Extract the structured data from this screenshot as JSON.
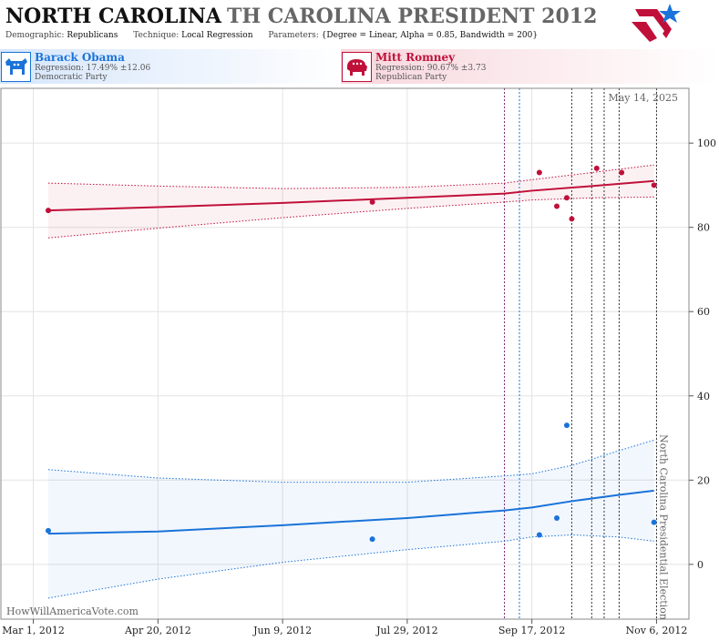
{
  "header": {
    "title_main": "NORTH CAROLINA",
    "title_sub": "TH CAROLINA PRESIDENT 2012",
    "demographic_label": "Demographic:",
    "demographic_value": "Republicans",
    "technique_label": "Technique:",
    "technique_value": "Local Regression",
    "parameters_label": "Parameters:",
    "parameters_value": "{Degree = Linear, Alpha = 0.85, Bandwidth = 200}"
  },
  "candidates": {
    "dem": {
      "name": "Barack Obama",
      "regression": "Regression: 17.49% ±12.06",
      "party": "Democratic Party",
      "color": "#1a73d9"
    },
    "rep": {
      "name": "Mitt Romney",
      "regression": "Regression: 90.67% ±3.73",
      "party": "Republican Party",
      "color": "#c0103a"
    }
  },
  "chart_data": {
    "type": "scatter",
    "date_label": "May 14, 2025",
    "watermark": "HowWillAmericaVote.com",
    "election_label": "North Carolina Presidential Election",
    "x_ticks": [
      "2012-03-01",
      "2012-04-20",
      "2012-06-09",
      "2012-07-29",
      "2012-09-17",
      "2012-11-06"
    ],
    "x_tick_labels": [
      "Mar 1, 2012",
      "Apr 20, 2012",
      "Jun 9, 2012",
      "Jul 29, 2012",
      "Sep 17, 2012",
      "Nov 6, 2012"
    ],
    "xlim": [
      "2012-02-17",
      "2012-11-19"
    ],
    "ylim": [
      -13,
      113
    ],
    "y_ticks": [
      0,
      20,
      40,
      60,
      80,
      100
    ],
    "grid": true,
    "event_lines": [
      {
        "date": "2012-09-06",
        "color": "#7a1f6e"
      },
      {
        "date": "2012-09-12",
        "color": "#1a73d9"
      },
      {
        "date": "2012-10-03",
        "color": "#333333"
      },
      {
        "date": "2012-10-11",
        "color": "#333333"
      },
      {
        "date": "2012-10-16",
        "color": "#333333"
      },
      {
        "date": "2012-10-22",
        "color": "#333333"
      },
      {
        "date": "2012-11-06",
        "color": "#333333"
      }
    ],
    "series": [
      {
        "name": "Mitt Romney",
        "color": "#c0103a",
        "points": [
          {
            "x": "2012-03-07",
            "y": 84
          },
          {
            "x": "2012-07-15",
            "y": 86
          },
          {
            "x": "2012-09-20",
            "y": 93
          },
          {
            "x": "2012-09-27",
            "y": 85
          },
          {
            "x": "2012-10-01",
            "y": 87
          },
          {
            "x": "2012-10-03",
            "y": 82
          },
          {
            "x": "2012-10-13",
            "y": 94
          },
          {
            "x": "2012-10-23",
            "y": 93
          },
          {
            "x": "2012-11-05",
            "y": 90
          }
        ],
        "trend": [
          {
            "x": "2012-03-07",
            "y": 84,
            "lo": 77.5,
            "hi": 90.5
          },
          {
            "x": "2012-04-20",
            "y": 84.8,
            "lo": 79.8,
            "hi": 89.8
          },
          {
            "x": "2012-06-09",
            "y": 85.8,
            "lo": 82.3,
            "hi": 89.2
          },
          {
            "x": "2012-07-29",
            "y": 87,
            "lo": 84.5,
            "hi": 89.5
          },
          {
            "x": "2012-09-06",
            "y": 88,
            "lo": 86,
            "hi": 90.5
          },
          {
            "x": "2012-09-17",
            "y": 88.7,
            "lo": 86.5,
            "hi": 91.3
          },
          {
            "x": "2012-10-11",
            "y": 89.8,
            "lo": 87,
            "hi": 93
          },
          {
            "x": "2012-11-05",
            "y": 91,
            "lo": 87.2,
            "hi": 94.8
          }
        ]
      },
      {
        "name": "Barack Obama",
        "color": "#1a73d9",
        "points": [
          {
            "x": "2012-03-07",
            "y": 8
          },
          {
            "x": "2012-07-15",
            "y": 6
          },
          {
            "x": "2012-09-20",
            "y": 7
          },
          {
            "x": "2012-09-27",
            "y": 11
          },
          {
            "x": "2012-10-01",
            "y": 33
          },
          {
            "x": "2012-11-05",
            "y": 10
          }
        ],
        "trend": [
          {
            "x": "2012-03-07",
            "y": 7.3,
            "lo": -8,
            "hi": 22.5
          },
          {
            "x": "2012-04-20",
            "y": 7.8,
            "lo": -3.5,
            "hi": 20.5
          },
          {
            "x": "2012-06-09",
            "y": 9.3,
            "lo": 0.5,
            "hi": 19.5
          },
          {
            "x": "2012-07-29",
            "y": 11,
            "lo": 3.5,
            "hi": 19.5
          },
          {
            "x": "2012-09-06",
            "y": 12.8,
            "lo": 5.5,
            "hi": 21
          },
          {
            "x": "2012-09-17",
            "y": 13.5,
            "lo": 6.5,
            "hi": 21.5
          },
          {
            "x": "2012-10-03",
            "y": 15,
            "lo": 7,
            "hi": 23.5
          },
          {
            "x": "2012-10-22",
            "y": 16.5,
            "lo": 6.5,
            "hi": 27
          },
          {
            "x": "2012-11-05",
            "y": 17.5,
            "lo": 5.5,
            "hi": 29.5
          }
        ]
      }
    ]
  }
}
